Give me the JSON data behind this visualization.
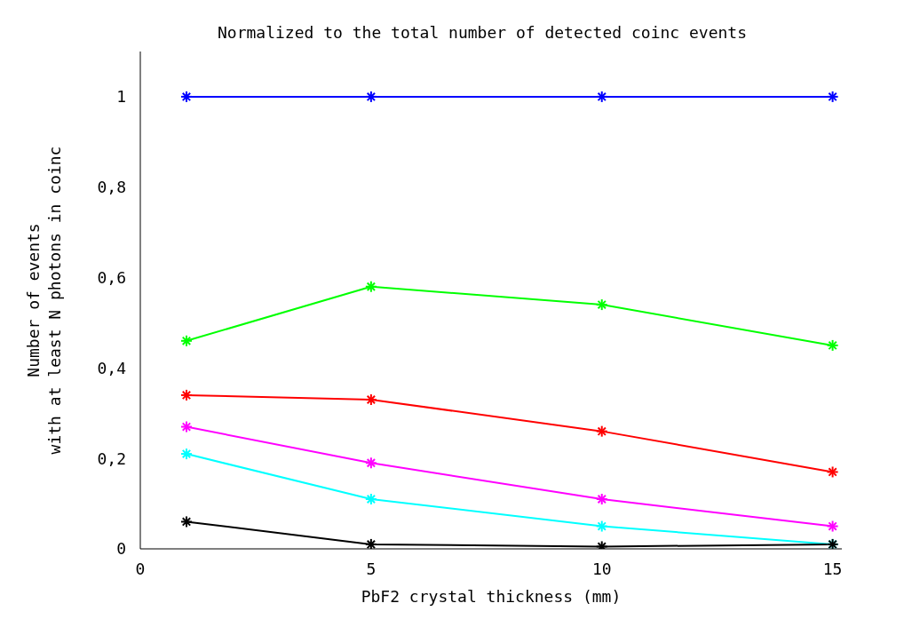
{
  "chart_data": {
    "type": "line",
    "title": "Normalized to the total number of detected coinc events",
    "xlabel": "PbF2 crystal thickness (mm)",
    "ylabel": "Number of events\nwith at least N photons in coinc",
    "x": [
      1,
      5,
      10,
      15
    ],
    "series": [
      {
        "color": "#0000ff",
        "values": [
          1,
          1,
          1,
          1
        ]
      },
      {
        "color": "#00ff00",
        "values": [
          0.46,
          0.58,
          0.54,
          0.45
        ]
      },
      {
        "color": "#ff0000",
        "values": [
          0.34,
          0.33,
          0.26,
          0.17
        ]
      },
      {
        "color": "#ff00ff",
        "values": [
          0.27,
          0.19,
          0.11,
          0.05
        ]
      },
      {
        "color": "#00ffff",
        "values": [
          0.21,
          0.11,
          0.05,
          0.01
        ]
      },
      {
        "color": "#000000",
        "values": [
          0.06,
          0.01,
          0.005,
          0.01
        ]
      }
    ],
    "xlim": [
      0,
      15.2
    ],
    "xticks": [
      0,
      5,
      10,
      15
    ],
    "ylim": [
      0,
      1.1
    ],
    "yticks": [
      0,
      {
        "value": 0.2,
        "label": "0,2"
      },
      {
        "value": 0.4,
        "label": "0,4"
      },
      {
        "value": 0.6,
        "label": "0,6"
      },
      {
        "value": 0.8,
        "label": "0,8"
      },
      1
    ],
    "grid": false,
    "legend": false,
    "marker": "cross",
    "line_style": "solid"
  }
}
